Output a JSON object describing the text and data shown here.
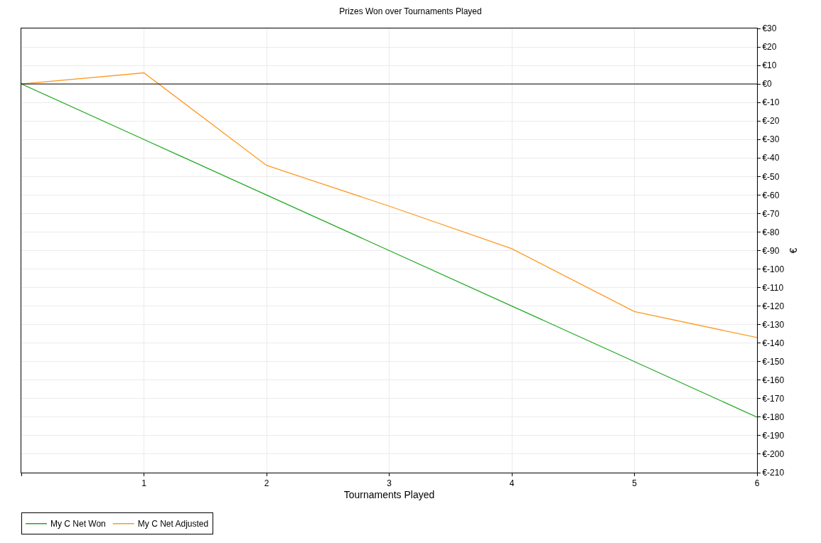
{
  "chart_data": {
    "type": "line",
    "title": "Prizes Won over Tournaments Played",
    "xlabel": "Tournaments Played",
    "ylabel": "€",
    "x": [
      0,
      1,
      2,
      3,
      4,
      5,
      6
    ],
    "series": [
      {
        "name": "My C Net Won",
        "color": "#22aa22",
        "values": [
          0,
          -30,
          -60,
          -90,
          -120,
          -150,
          -180
        ]
      },
      {
        "name": "My C Net Adjusted",
        "color": "#ff9922",
        "values": [
          0,
          6,
          -44,
          -66,
          -89,
          -123,
          -137
        ]
      }
    ],
    "xlim": [
      0,
      6
    ],
    "xticks": [
      {
        "value": 0,
        "label": null
      },
      1,
      2,
      3,
      4,
      5,
      6
    ],
    "ylim": [
      -210,
      30
    ],
    "yticks": [
      {
        "value": 30,
        "label": "€30"
      },
      {
        "value": 20,
        "label": "€20"
      },
      {
        "value": 10,
        "label": "€10"
      },
      {
        "value": 0,
        "label": "€0"
      },
      {
        "value": -10,
        "label": "€-10"
      },
      {
        "value": -20,
        "label": "€-20"
      },
      {
        "value": -30,
        "label": "€-30"
      },
      {
        "value": -40,
        "label": "€-40"
      },
      {
        "value": -50,
        "label": "€-50"
      },
      {
        "value": -60,
        "label": "€-60"
      },
      {
        "value": -70,
        "label": "€-70"
      },
      {
        "value": -80,
        "label": "€-80"
      },
      {
        "value": -90,
        "label": "€-90"
      },
      {
        "value": -100,
        "label": "€-100"
      },
      {
        "value": -110,
        "label": "€-110"
      },
      {
        "value": -120,
        "label": "€-120"
      },
      {
        "value": -130,
        "label": "€-130"
      },
      {
        "value": -140,
        "label": "€-140"
      },
      {
        "value": -150,
        "label": "€-150"
      },
      {
        "value": -160,
        "label": "€-160"
      },
      {
        "value": -170,
        "label": "€-170"
      },
      {
        "value": -180,
        "label": "€-180"
      },
      {
        "value": -190,
        "label": "€-190"
      },
      {
        "value": -200,
        "label": "€-200"
      },
      {
        "value": -210,
        "label": "€-210"
      }
    ],
    "ref_lines": [
      {
        "axis": "y",
        "value": 0,
        "color": "#000000"
      }
    ],
    "grid": true,
    "legend": "bottom left",
    "marker": "none",
    "line_style": "solid"
  }
}
